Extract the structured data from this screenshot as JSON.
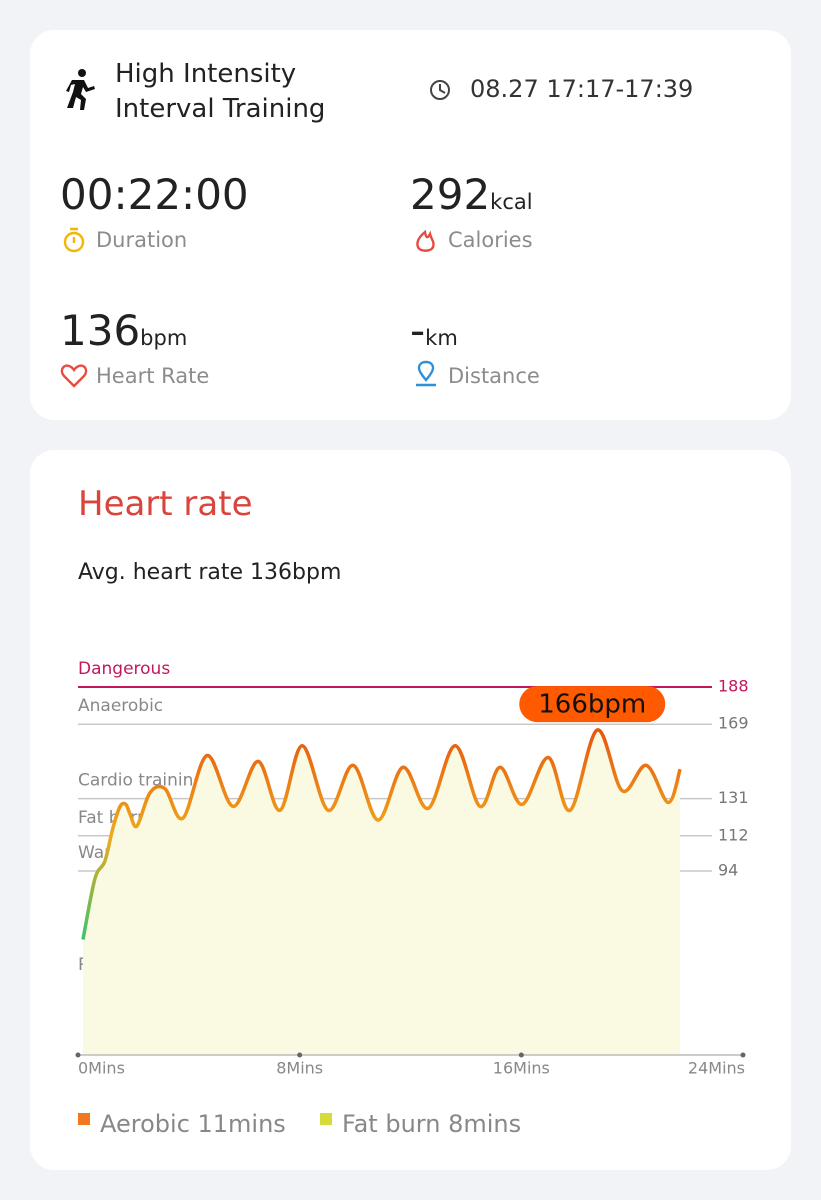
{
  "header": {
    "title": "High Intensity Interval Training",
    "time": "08.27 17:17-17:39"
  },
  "stats": [
    {
      "value": "00:22:00",
      "label": "Duration"
    },
    {
      "value": "292",
      "unit": "kcal",
      "label": "Calories"
    },
    {
      "value": "136",
      "unit": "bpm",
      "label": "Heart Rate"
    },
    {
      "value": "-",
      "unit": "km",
      "label": "Distance"
    }
  ],
  "heart_rate": {
    "title": "Heart rate",
    "average": "Avg. heart rate 136bpm"
  },
  "chart_data": {
    "type": "line",
    "x": [
      0.18,
      0.61,
      0.97,
      1.26,
      1.52,
      1.73,
      1.88,
      2.13,
      2.6,
      3.14,
      3.79,
      4.66,
      5.6,
      6.5,
      7.29,
      8.09,
      9.03,
      9.93,
      10.83,
      11.73,
      12.64,
      13.61,
      14.51,
      15.23,
      16.03,
      16.97,
      17.76,
      18.74,
      19.64,
      20.51,
      21.3,
      21.73
    ],
    "values": [
      59,
      90,
      99,
      116,
      127,
      128,
      123,
      117,
      134,
      136,
      121,
      153,
      127,
      150,
      125,
      158,
      125,
      148,
      120,
      147,
      126,
      158,
      127,
      147,
      128,
      152,
      125,
      166,
      135,
      148,
      129,
      146
    ],
    "xlim": [
      0,
      24
    ],
    "xticks": [
      {
        "value": 0,
        "label": "0Mins"
      },
      {
        "value": 8,
        "label": "8Mins"
      },
      {
        "value": 16,
        "label": "16Mins"
      },
      {
        "value": 24,
        "label": "24Mins"
      }
    ],
    "ylim": [
      0,
      188
    ],
    "yticks": [
      94,
      112,
      131,
      169,
      188
    ],
    "zones": [
      "Resting",
      "Warm up",
      "Fat burning",
      "Cardio training",
      "Anaerobic",
      "Dangerous"
    ],
    "peak_label": "166bpm",
    "line_colors": [
      "#3cc36b",
      "#f0a91c",
      "#e8550f"
    ],
    "fill_color": "#fafae3",
    "grid_color": "#c8c8c8",
    "danger_color": "#c2185b",
    "legend": [
      {
        "label": "Aerobic 11mins",
        "color": "#f0791f"
      },
      {
        "label": "Fat burn 8mins",
        "color": "#d4dc3c"
      }
    ]
  }
}
